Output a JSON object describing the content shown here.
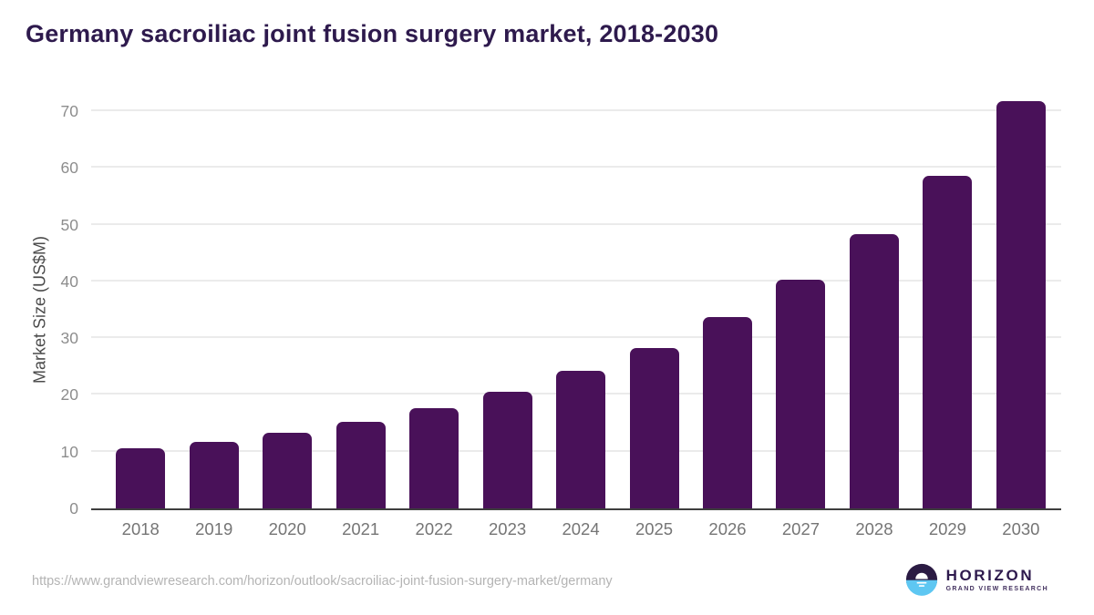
{
  "chart_data": {
    "type": "bar",
    "title": "Germany sacroiliac joint fusion surgery market, 2018-2030",
    "ylabel": "Market Size (US$M)",
    "xlabel": "",
    "categories": [
      "2018",
      "2019",
      "2020",
      "2021",
      "2022",
      "2023",
      "2024",
      "2025",
      "2026",
      "2027",
      "2028",
      "2029",
      "2030"
    ],
    "values": [
      10.6,
      11.8,
      13.4,
      15.3,
      17.7,
      20.6,
      24.2,
      28.3,
      33.7,
      40.3,
      48.3,
      58.6,
      71.8
    ],
    "ylim": [
      0,
      70
    ],
    "yticks": [
      0,
      10,
      20,
      30,
      40,
      50,
      60,
      70
    ],
    "grid": "horizontal-only",
    "legend": "none",
    "bar_color": "#491159",
    "title_color": "#2e1a4d",
    "gridline_color": "#ebebeb",
    "axis_line_color": "#3e3e3e",
    "ytick_color": "#8d8d8d",
    "xtick_color": "#757575"
  },
  "footer": {
    "source_url": "https://www.grandviewresearch.com/horizon/outlook/sacroiliac-joint-fusion-surgery-market/germany",
    "logo": {
      "title": "HORIZON",
      "subtitle": "GRAND VIEW RESEARCH",
      "icon": "sunset-circle-icon",
      "icon_top_color": "#2b1b43",
      "icon_bottom_color": "#5ec7f2"
    }
  }
}
